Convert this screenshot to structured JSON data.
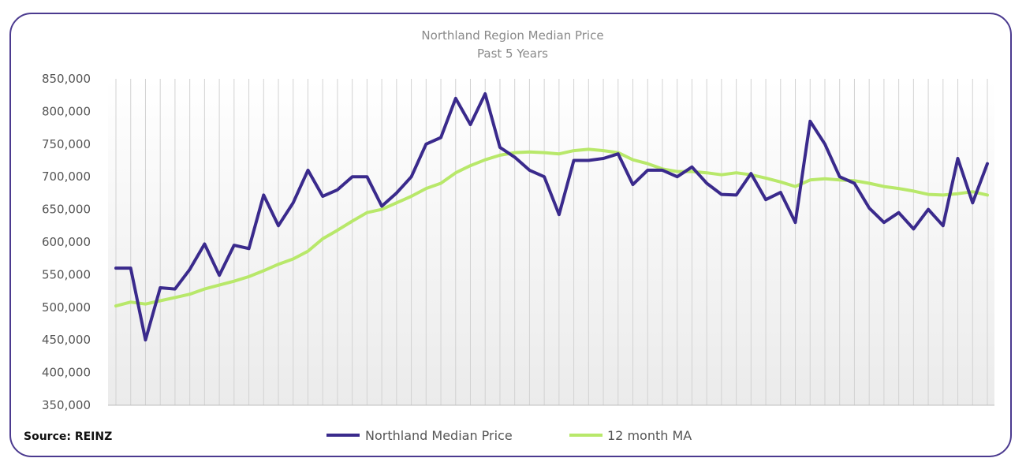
{
  "chart_data": {
    "type": "line",
    "title": "Northland Region Median Price",
    "subtitle": "Past 5 Years",
    "xlabel": "",
    "ylabel": "",
    "ylim": [
      350000,
      850000
    ],
    "yticks": [
      850000,
      800000,
      750000,
      700000,
      650000,
      600000,
      550000,
      500000,
      450000,
      400000,
      350000
    ],
    "ytick_labels": [
      "850,000",
      "800,000",
      "750,000",
      "700,000",
      "650,000",
      "600,000",
      "550,000",
      "500,000",
      "450,000",
      "400,000",
      "350,000"
    ],
    "grid": "vertical",
    "legend_position": "bottom",
    "series": [
      {
        "name": "Northland Median Price",
        "color": "#3a2a8c",
        "values": [
          560000,
          560000,
          450000,
          530000,
          528000,
          558000,
          597000,
          549000,
          595000,
          590000,
          672000,
          625000,
          660000,
          710000,
          670000,
          680000,
          700000,
          700000,
          655000,
          675000,
          700000,
          750000,
          760000,
          820000,
          780000,
          827000,
          745000,
          730000,
          710000,
          700000,
          642000,
          725000,
          725000,
          728000,
          735000,
          688000,
          710000,
          710000,
          700000,
          715000,
          690000,
          673000,
          672000,
          705000,
          665000,
          676000,
          630000,
          785000,
          750000,
          700000,
          690000,
          652000,
          630000,
          645000,
          620000,
          650000,
          625000,
          728000,
          660000,
          720000
        ]
      },
      {
        "name": "12 month MA",
        "color": "#b8e86a",
        "values": [
          502000,
          508000,
          505000,
          510000,
          515000,
          520000,
          528000,
          534000,
          540000,
          547000,
          556000,
          566000,
          574000,
          586000,
          605000,
          618000,
          632000,
          645000,
          650000,
          660000,
          670000,
          682000,
          690000,
          706000,
          717000,
          726000,
          733000,
          737000,
          738000,
          737000,
          735000,
          740000,
          742000,
          740000,
          737000,
          726000,
          720000,
          712000,
          708000,
          708000,
          706000,
          703000,
          706000,
          703000,
          698000,
          692000,
          685000,
          695000,
          697000,
          695000,
          694000,
          690000,
          685000,
          682000,
          678000,
          673000,
          672000,
          674000,
          677000,
          672000
        ]
      }
    ]
  },
  "source": "Source: REINZ"
}
